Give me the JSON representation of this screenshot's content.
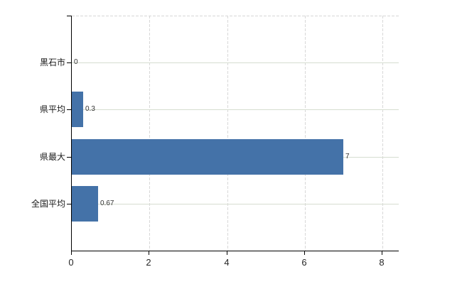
{
  "chart_data": {
    "type": "bar",
    "orientation": "horizontal",
    "categories": [
      "黒石市",
      "県平均",
      "県最大",
      "全国平均"
    ],
    "values": [
      0,
      0.3,
      7,
      0.67
    ],
    "data_labels": [
      "0",
      "0.3",
      "7",
      "0.67"
    ],
    "title": "",
    "xlabel": "",
    "ylabel": "",
    "xlim": [
      0,
      8.42
    ],
    "xticks": [
      0,
      2,
      4,
      6,
      8
    ],
    "xtick_labels": [
      "0",
      "2",
      "4",
      "6",
      "8"
    ],
    "grid": {
      "vertical": "dashed",
      "horizontal": "solid",
      "top_border": "dashed"
    },
    "legend": "none",
    "colors": {
      "bar": "#4472a8",
      "axis": "#000000",
      "horizontal_gridline": "#d6ddd0",
      "vertical_gridline": "#d8d8d8",
      "data_label": "#333333",
      "tick_label": "#262626",
      "category_label": "#1a1a1a",
      "background": "#ffffff"
    }
  }
}
